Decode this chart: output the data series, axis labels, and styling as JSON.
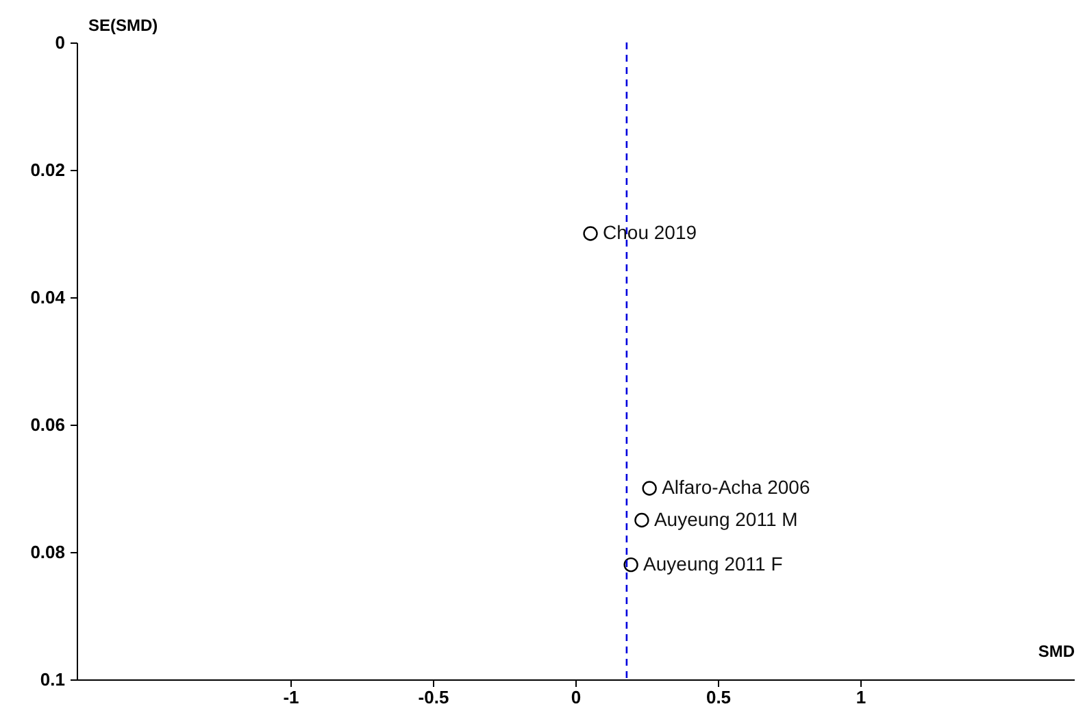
{
  "chart_data": {
    "type": "scatter",
    "xlabel": "SMD",
    "ylabel": "SE(SMD)",
    "x": [
      0.053,
      0.26,
      0.233,
      0.195
    ],
    "series": [
      {
        "color": "#000000",
        "values": [
          0.03,
          0.07,
          0.075,
          0.082
        ]
      }
    ],
    "xlim": [
      -1.75,
      1.75
    ],
    "xticks": [
      -1,
      -0.5,
      0,
      0.5,
      1
    ],
    "ylim": [
      0.1,
      0
    ],
    "yticks": [
      0,
      0.02,
      0.04,
      0.06,
      0.08,
      0.1
    ],
    "ref_lines": [
      {
        "axis": "x",
        "value": 0.18,
        "color": "#0000dd",
        "line_style": "dashed"
      }
    ],
    "annotations": [
      {
        "text": "Chou 2019",
        "x": 0.053,
        "y": 0.03
      },
      {
        "text": "Alfaro-Acha 2006",
        "x": 0.26,
        "y": 0.07
      },
      {
        "text": "Auyeung 2011 M",
        "x": 0.233,
        "y": 0.075
      },
      {
        "text": "Auyeung 2011 F",
        "x": 0.195,
        "y": 0.082
      }
    ],
    "marker": "circle",
    "grid": false
  }
}
